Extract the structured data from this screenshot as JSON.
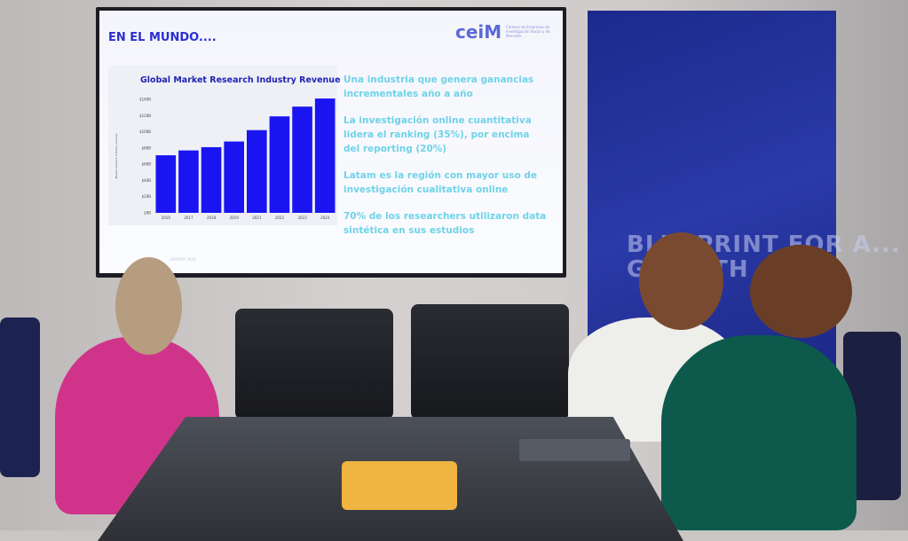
{
  "slide": {
    "title": "EN EL MUNDO....",
    "logo": "ceiM",
    "logo_subtitle": "Cámara de Empresas de Investigación Social y de Mercado",
    "bullets": [
      "Una industria que genera ganancias incrementales año a año",
      "La investigación online cuantitativa lidera el ranking (35%), por encima del reporting (20%)",
      "Latam es la región con mayor uso de investigación cualitativa online",
      "70% de los researchers utilizaron data sintética en sus estudios"
    ],
    "source": "ESOMAR 2024"
  },
  "banner": {
    "text": "BLUEPRINT FOR A... GROWTH"
  },
  "chart_data": {
    "type": "bar",
    "title": "Global Market Research Industry Revenue",
    "ylabel": "Market research industry revenue",
    "categories": [
      "2016",
      "2017",
      "2018",
      "2019",
      "2021",
      "2022",
      "2023",
      "2024"
    ],
    "values": [
      71,
      77,
      81,
      88,
      102,
      119,
      131,
      141
    ],
    "yticks": [
      "$0B",
      "$20B",
      "$40B",
      "$60B",
      "$80B",
      "$100B",
      "$120B",
      "$140B"
    ],
    "ylim": [
      0,
      140
    ],
    "unit": "billion USD",
    "color": "#1a14f0",
    "grid": false
  }
}
